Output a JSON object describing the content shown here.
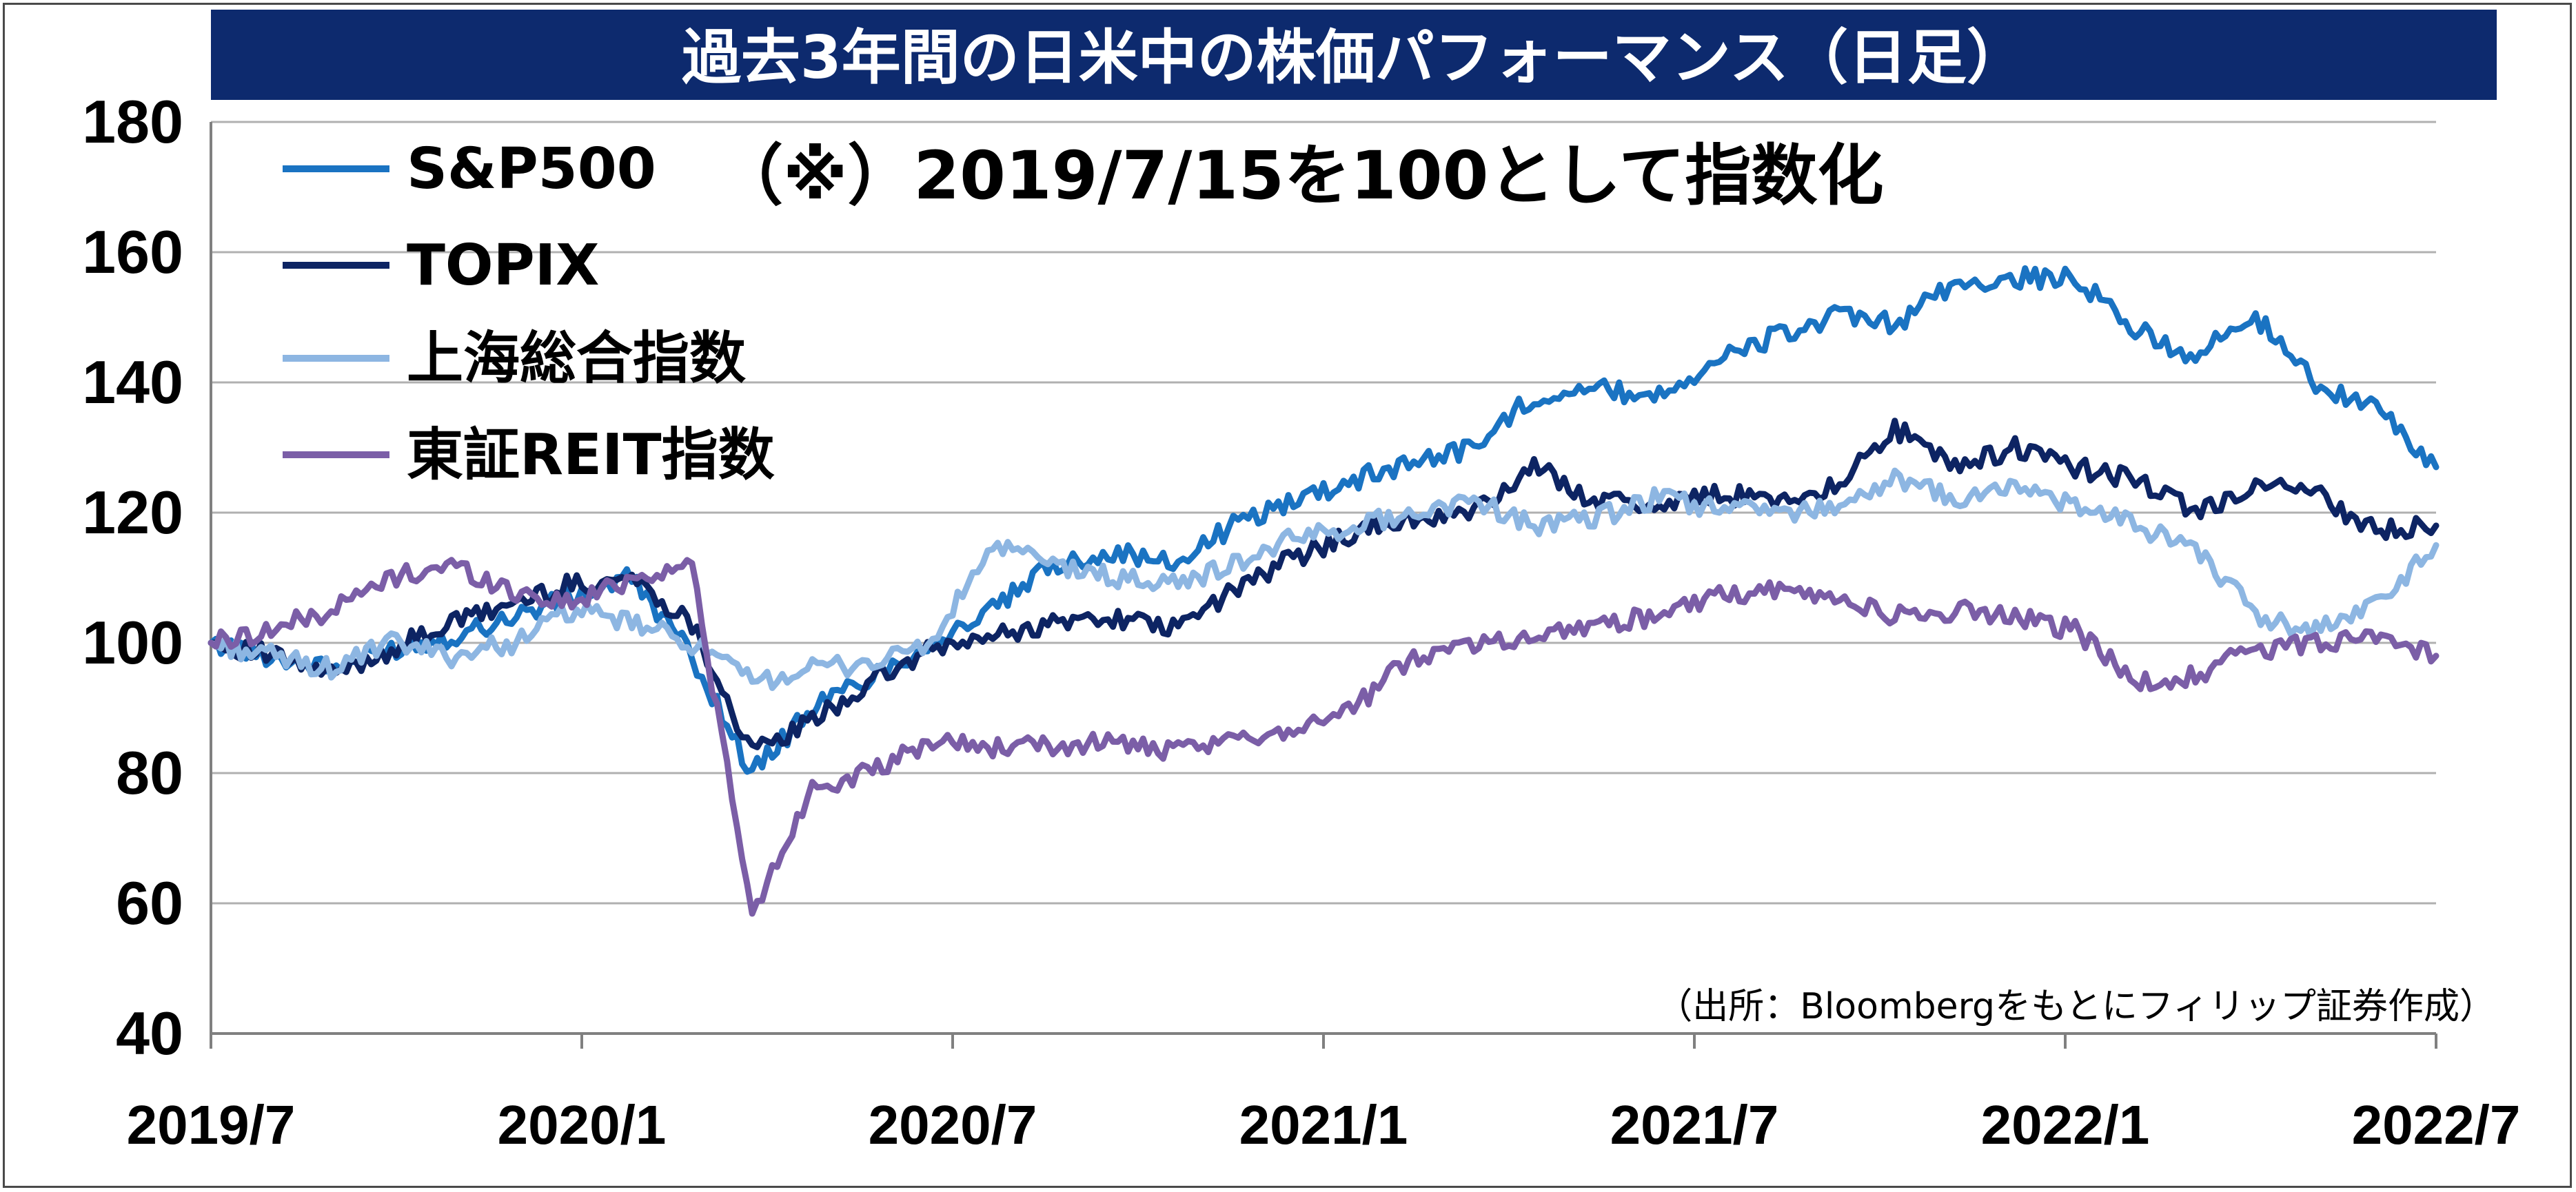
{
  "chart_data": {
    "type": "line",
    "title": "過去3年間の日米中の株価パフォーマンス（日足）",
    "annotation": "（※）2019/7/15を100として指数化",
    "source_note": "（出所：Bloombergをもとにフィリップ証券作成）",
    "xlabel": "",
    "ylabel": "",
    "ylim": [
      40,
      180
    ],
    "yticks": [
      "180",
      "160",
      "140",
      "120",
      "100",
      "80",
      "60",
      "40"
    ],
    "xticks": [
      "2019/7",
      "2020/1",
      "2020/7",
      "2021/1",
      "2021/7",
      "2022/1",
      "2022/7"
    ],
    "grid": "horizontal",
    "legend_position": "top-left",
    "x": [
      "2019/7",
      "2019/8",
      "2019/9",
      "2019/10",
      "2019/11",
      "2019/12",
      "2020/1",
      "2020/2",
      "2020/3a",
      "2020/3b",
      "2020/4",
      "2020/5",
      "2020/6",
      "2020/7",
      "2020/8",
      "2020/9",
      "2020/10",
      "2020/11",
      "2020/12",
      "2021/1",
      "2021/2",
      "2021/3",
      "2021/4",
      "2021/5",
      "2021/6",
      "2021/7",
      "2021/8",
      "2021/9",
      "2021/10",
      "2021/11",
      "2021/12",
      "2022/1",
      "2022/2",
      "2022/3",
      "2022/4",
      "2022/5",
      "2022/6",
      "2022/7"
    ],
    "series": [
      {
        "name": "S&P500",
        "color": "#1a73c2",
        "values": [
          100,
          98,
          96,
          99,
          101,
          104,
          107,
          110,
          98,
          80,
          90,
          95,
          100,
          105,
          112,
          114,
          112,
          118,
          122,
          125,
          128,
          130,
          138,
          139,
          138,
          143,
          147,
          150,
          149,
          155,
          156,
          156,
          148,
          144,
          150,
          140,
          136,
          127
        ]
      },
      {
        "name": "TOPIX",
        "color": "#0d2463",
        "values": [
          100,
          98,
          95,
          99,
          103,
          106,
          109,
          110,
          103,
          83,
          88,
          94,
          99,
          101,
          103,
          104,
          102,
          108,
          113,
          117,
          119,
          120,
          127,
          122,
          121,
          123,
          122,
          124,
          133,
          127,
          130,
          127,
          125,
          120,
          124,
          123,
          117,
          118
        ]
      },
      {
        "name": "上海総合指数",
        "color": "#8db6e2",
        "values": [
          100,
          98,
          96,
          100,
          98,
          100,
          105,
          103,
          100,
          94,
          96,
          97,
          100,
          115,
          112,
          110,
          109,
          112,
          116,
          118,
          120,
          122,
          118,
          119,
          122,
          121,
          120,
          121,
          125,
          122,
          124,
          121,
          118,
          115,
          104,
          102,
          106,
          115
        ]
      },
      {
        "name": "東証REIT指数",
        "color": "#7b5ea7",
        "values": [
          100,
          102,
          105,
          110,
          112,
          108,
          106,
          110,
          112,
          58,
          78,
          80,
          85,
          84,
          84,
          85,
          83,
          85,
          87,
          90,
          98,
          100,
          101,
          103,
          104,
          107,
          108,
          107,
          104,
          105,
          104,
          102,
          94,
          95,
          99,
          100,
          101,
          98
        ]
      }
    ]
  }
}
